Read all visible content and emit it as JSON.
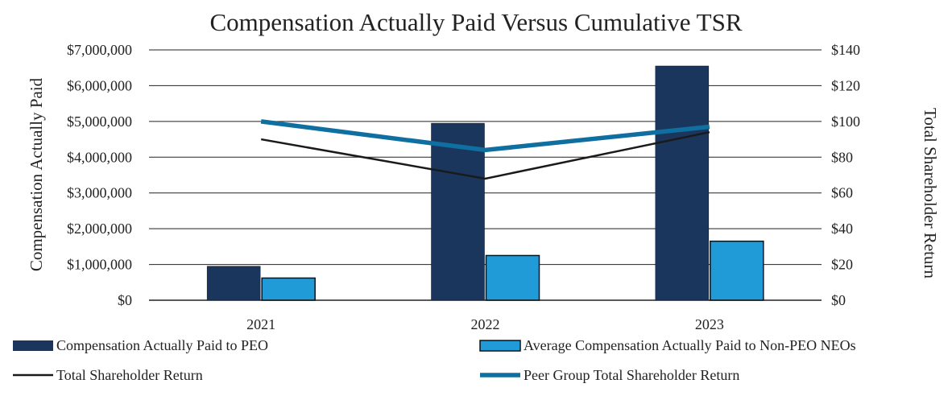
{
  "chart_data": {
    "type": "bar",
    "title": "Compensation Actually Paid Versus Cumulative TSR",
    "categories": [
      "2021",
      "2022",
      "2023"
    ],
    "ylabel": "Compensation Actually Paid",
    "y2label": "Total Shareholder Return",
    "ylim": [
      0,
      7000000
    ],
    "y2lim": [
      0,
      140
    ],
    "yticks": [
      "$0",
      "$1,000,000",
      "$2,000,000",
      "$3,000,000",
      "$4,000,000",
      "$5,000,000",
      "$6,000,000",
      "$7,000,000"
    ],
    "y2ticks": [
      "$0",
      "$20",
      "$40",
      "$60",
      "$80",
      "$100",
      "$120",
      "$140"
    ],
    "grid": true,
    "bar_series": [
      {
        "name": "Compensation Actually Paid to PEO",
        "color": "#1b365d",
        "values": [
          950000,
          4950000,
          6550000
        ]
      },
      {
        "name": "Average Compensation Actually Paid to Non-PEO NEOs",
        "color": "#219bd8",
        "values": [
          620000,
          1250000,
          1650000
        ]
      }
    ],
    "line_series": [
      {
        "name": "Total Shareholder Return",
        "color": "#1a1a1a",
        "axis": "right",
        "values": [
          90,
          68,
          94
        ]
      },
      {
        "name": "Peer Group Total Shareholder Return",
        "color": "#0f6fa0",
        "axis": "right",
        "values": [
          100,
          84,
          97
        ]
      }
    ]
  }
}
